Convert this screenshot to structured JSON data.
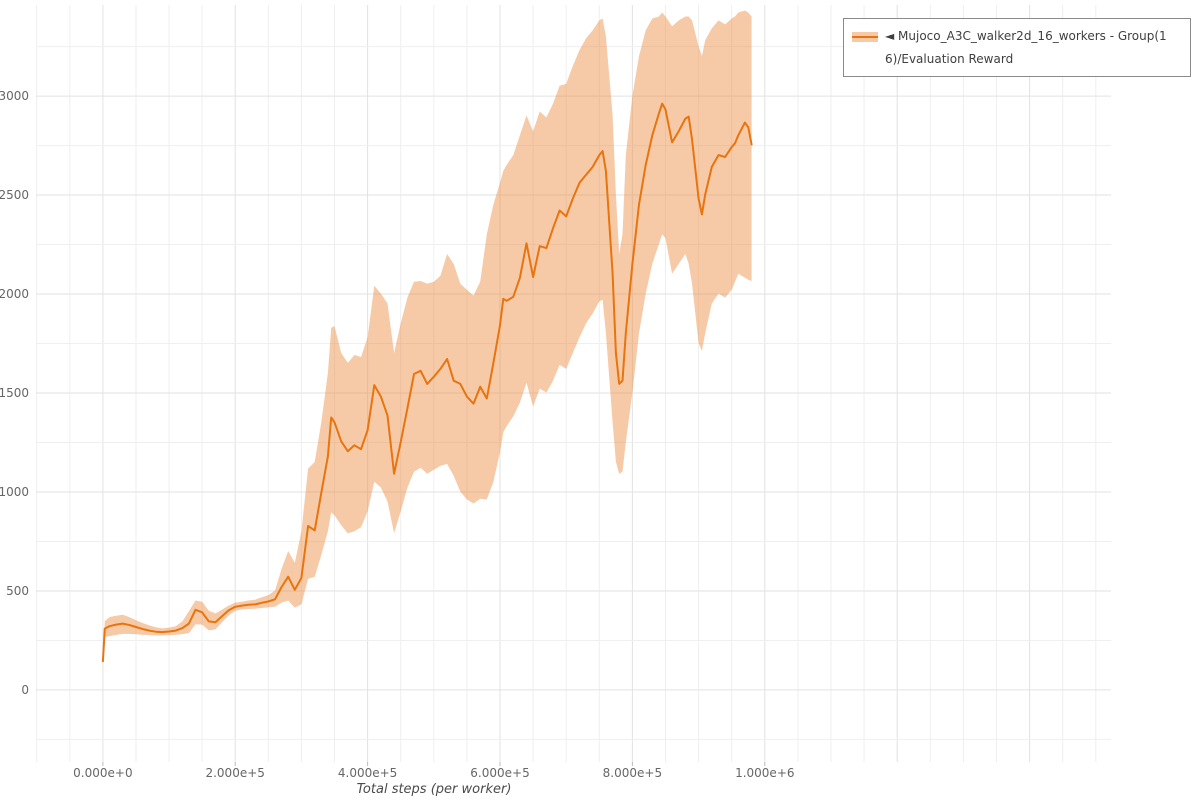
{
  "page": {
    "background": "#ffffff"
  },
  "chart_data": {
    "type": "line",
    "title": "",
    "xlabel": "Total steps (per worker)",
    "ylabel": "",
    "grid": {
      "x_minor": 50000,
      "x_major": 200000,
      "y_minor": 250,
      "y_major": 500,
      "visible": true
    },
    "xlim": [
      -101000,
      1523000
    ],
    "ylim": [
      -364,
      3460
    ],
    "x_ticks": [
      {
        "value": 0,
        "label": "0.000e+0"
      },
      {
        "value": 200000,
        "label": "2.000e+5"
      },
      {
        "value": 400000,
        "label": "4.000e+5"
      },
      {
        "value": 600000,
        "label": "6.000e+5"
      },
      {
        "value": 800000,
        "label": "8.000e+5"
      },
      {
        "value": 1000000,
        "label": "1.000e+6"
      }
    ],
    "y_ticks": [
      0,
      500,
      1000,
      1500,
      2000,
      2500,
      3000
    ],
    "legend": {
      "position": "top-right",
      "label": "◄ Mujoco_A3C_walker2d_16_workers - Group(16)/Evaluation Reward"
    },
    "series": [
      {
        "name": "Mujoco_A3C_walker2d_16_workers - Group(16)/Evaluation Reward",
        "color": "#e8740f",
        "band_color": "#ea8a3c",
        "band_opacity": 0.45,
        "x": [
          0,
          3000,
          10000,
          20000,
          30000,
          40000,
          50000,
          60000,
          70000,
          80000,
          90000,
          100000,
          110000,
          120000,
          130000,
          140000,
          150000,
          160000,
          170000,
          180000,
          190000,
          200000,
          210000,
          220000,
          230000,
          240000,
          250000,
          260000,
          270000,
          280000,
          290000,
          300000,
          310000,
          320000,
          330000,
          340000,
          345000,
          350000,
          360000,
          370000,
          380000,
          390000,
          400000,
          410000,
          420000,
          430000,
          440000,
          450000,
          460000,
          470000,
          480000,
          490000,
          500000,
          510000,
          520000,
          530000,
          540000,
          550000,
          560000,
          570000,
          580000,
          590000,
          600000,
          605000,
          610000,
          620000,
          630000,
          640000,
          650000,
          660000,
          670000,
          680000,
          690000,
          700000,
          710000,
          720000,
          730000,
          740000,
          750000,
          755000,
          760000,
          770000,
          775000,
          780000,
          785000,
          790000,
          800000,
          810000,
          820000,
          830000,
          840000,
          845000,
          850000,
          860000,
          870000,
          880000,
          885000,
          890000,
          900000,
          905000,
          910000,
          920000,
          930000,
          940000,
          950000,
          955000,
          960000,
          970000,
          975000,
          980000
        ],
        "mean": [
          145,
          310,
          322,
          330,
          335,
          328,
          318,
          308,
          300,
          294,
          292,
          295,
          300,
          312,
          335,
          405,
          392,
          346,
          342,
          372,
          402,
          420,
          426,
          430,
          432,
          440,
          447,
          458,
          520,
          572,
          506,
          566,
          828,
          806,
          996,
          1180,
          1376,
          1352,
          1256,
          1206,
          1236,
          1216,
          1312,
          1540,
          1482,
          1386,
          1092,
          1252,
          1422,
          1596,
          1612,
          1546,
          1582,
          1622,
          1672,
          1562,
          1546,
          1482,
          1446,
          1532,
          1472,
          1652,
          1842,
          1976,
          1966,
          1986,
          2082,
          2256,
          2086,
          2242,
          2232,
          2332,
          2422,
          2392,
          2482,
          2562,
          2602,
          2642,
          2702,
          2722,
          2622,
          2102,
          1702,
          1546,
          1562,
          1802,
          2152,
          2452,
          2652,
          2802,
          2912,
          2962,
          2932,
          2766,
          2822,
          2886,
          2896,
          2782,
          2482,
          2402,
          2502,
          2642,
          2702,
          2692,
          2742,
          2762,
          2802,
          2866,
          2842,
          2756
        ],
        "lower": [
          138,
          268,
          272,
          278,
          283,
          283,
          281,
          279,
          277,
          275,
          275,
          277,
          279,
          282,
          286,
          332,
          330,
          301,
          306,
          341,
          376,
          400,
          407,
          409,
          410,
          414,
          417,
          420,
          441,
          452,
          416,
          432,
          562,
          572,
          682,
          802,
          898,
          882,
          832,
          792,
          802,
          822,
          902,
          1052,
          1022,
          952,
          792,
          902,
          1022,
          1102,
          1122,
          1092,
          1112,
          1132,
          1142,
          1082,
          1002,
          962,
          942,
          966,
          962,
          1052,
          1202,
          1302,
          1332,
          1382,
          1452,
          1552,
          1432,
          1522,
          1502,
          1562,
          1642,
          1622,
          1702,
          1782,
          1852,
          1902,
          1962,
          1972,
          1802,
          1352,
          1152,
          1092,
          1102,
          1252,
          1502,
          1802,
          2002,
          2152,
          2252,
          2302,
          2282,
          2102,
          2152,
          2202,
          2152,
          2052,
          1752,
          1712,
          1802,
          1952,
          2002,
          1982,
          2022,
          2062,
          2102,
          2082,
          2072,
          2066
        ],
        "upper": [
          152,
          348,
          368,
          375,
          380,
          368,
          352,
          338,
          326,
          317,
          311,
          315,
          322,
          346,
          398,
          452,
          446,
          400,
          386,
          406,
          426,
          441,
          446,
          452,
          456,
          468,
          479,
          502,
          612,
          702,
          642,
          802,
          1118,
          1152,
          1352,
          1602,
          1830,
          1838,
          1702,
          1652,
          1692,
          1682,
          1782,
          2042,
          2002,
          1952,
          1702,
          1852,
          1982,
          2062,
          2066,
          2052,
          2062,
          2092,
          2202,
          2152,
          2052,
          2022,
          1992,
          2062,
          2302,
          2452,
          2562,
          2622,
          2652,
          2702,
          2802,
          2902,
          2822,
          2922,
          2892,
          2962,
          3052,
          3062,
          3152,
          3232,
          3292,
          3332,
          3382,
          3392,
          3302,
          2902,
          2502,
          2202,
          2302,
          2702,
          3002,
          3202,
          3332,
          3392,
          3402,
          3422,
          3402,
          3352,
          3382,
          3402,
          3402,
          3382,
          3252,
          3202,
          3282,
          3342,
          3382,
          3362,
          3392,
          3402,
          3422,
          3432,
          3422,
          3402
        ]
      }
    ]
  }
}
